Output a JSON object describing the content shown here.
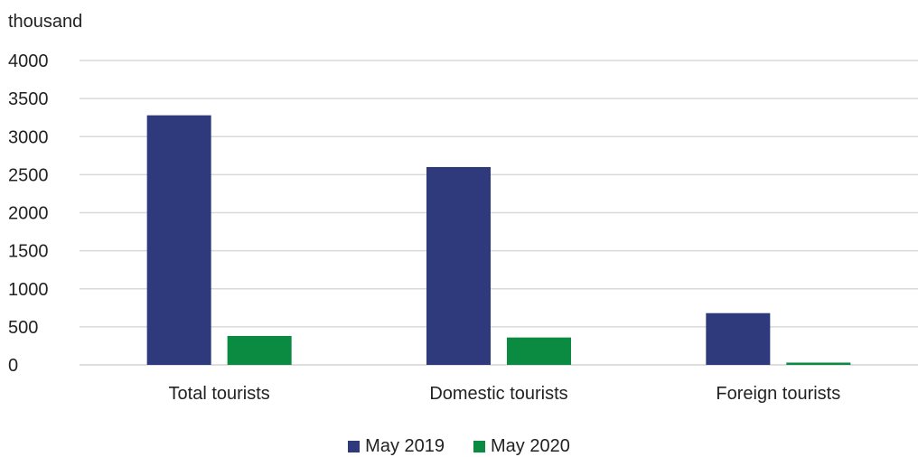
{
  "chart_data": {
    "type": "bar",
    "unit_label": "thousand",
    "categories": [
      "Total tourists",
      "Domestic tourists",
      "Foreign tourists"
    ],
    "series": [
      {
        "name": "May 2019",
        "color": "#2e3a7c",
        "values": [
          3280,
          2600,
          680
        ]
      },
      {
        "name": "May 2020",
        "color": "#0b8a42",
        "values": [
          380,
          360,
          30
        ]
      }
    ],
    "ylim": [
      0,
      4000
    ],
    "yticks": [
      0,
      500,
      1000,
      1500,
      2000,
      2500,
      3000,
      3500,
      4000
    ],
    "grid": true,
    "legend_position": "bottom-center"
  }
}
